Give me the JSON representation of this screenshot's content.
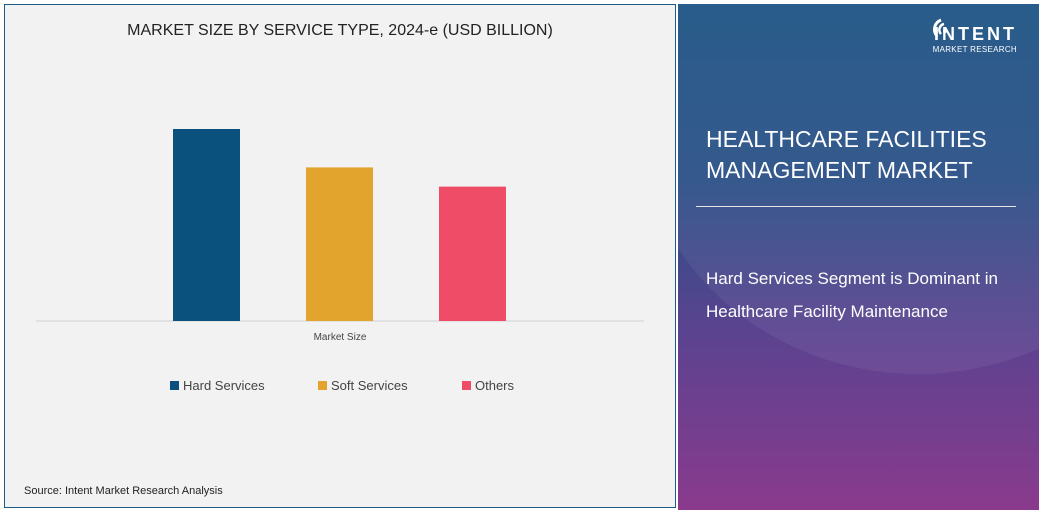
{
  "chart_data": {
    "type": "bar",
    "title": "MARKET SIZE BY SERVICE TYPE, 2024-e (USD BILLION)",
    "categories": [
      "Market Size"
    ],
    "xlabel": "",
    "ylabel": "",
    "ylim": [
      0,
      1.0
    ],
    "grid": false,
    "legend_position": "bottom",
    "series": [
      {
        "name": "Hard Services",
        "values": [
          1.0
        ],
        "color": "#0b517d"
      },
      {
        "name": "Soft Services",
        "values": [
          0.8
        ],
        "color": "#e2a42d"
      },
      {
        "name": "Others",
        "values": [
          0.7
        ],
        "color": "#ef4c68"
      }
    ]
  },
  "source": "Source: Intent Market Research Analysis",
  "logo": {
    "brand": "INTENT",
    "sub": "MARKET RESEARCH"
  },
  "panel": {
    "heading": "HEALTHCARE FACILITIES MANAGEMENT MARKET",
    "tagline": "Hard Services Segment is Dominant in Healthcare Facility Maintenance"
  }
}
